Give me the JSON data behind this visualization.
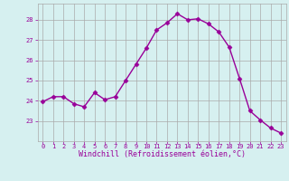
{
  "x": [
    0,
    1,
    2,
    3,
    4,
    5,
    6,
    7,
    8,
    9,
    10,
    11,
    12,
    13,
    14,
    15,
    16,
    17,
    18,
    19,
    20,
    21,
    22,
    23
  ],
  "y": [
    23.95,
    24.2,
    24.2,
    23.85,
    23.7,
    24.4,
    24.05,
    24.2,
    25.0,
    25.8,
    26.6,
    27.5,
    27.85,
    28.3,
    28.0,
    28.05,
    27.8,
    27.4,
    26.65,
    25.1,
    23.5,
    23.05,
    22.65,
    22.4
  ],
  "line_color": "#990099",
  "marker": "D",
  "markersize": 2.5,
  "linewidth": 1.0,
  "xlabel": "Windchill (Refroidissement éolien,°C)",
  "xlabel_color": "#990099",
  "bg_color": "#d6f0f0",
  "grid_color": "#aaaaaa",
  "tick_color": "#990099",
  "ylim": [
    22.0,
    28.8
  ],
  "yticks": [
    23,
    24,
    25,
    26,
    27,
    28
  ],
  "xlim": [
    -0.5,
    23.5
  ],
  "xticks": [
    0,
    1,
    2,
    3,
    4,
    5,
    6,
    7,
    8,
    9,
    10,
    11,
    12,
    13,
    14,
    15,
    16,
    17,
    18,
    19,
    20,
    21,
    22,
    23
  ],
  "tick_fontsize": 5.0,
  "xlabel_fontsize": 6.0
}
